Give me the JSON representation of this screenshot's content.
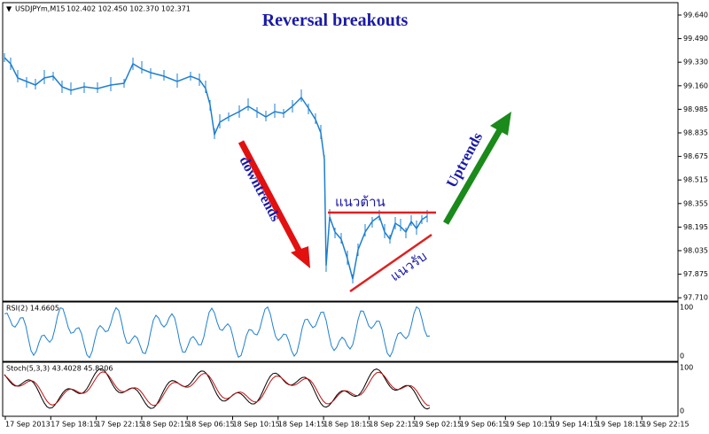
{
  "header": {
    "symbol": "USDJPYm,M15",
    "quote": "102.402 102.450 102.370 102.371"
  },
  "title": "Reversal breakouts",
  "annotations": {
    "downtrend": "downtrends",
    "uptrend": "Uptrends",
    "resistance": "แนวต้าน",
    "support": "แนวรับ"
  },
  "price_axis": [
    "99.640",
    "99.490",
    "99.330",
    "99.160",
    "98.985",
    "98.835",
    "98.675",
    "98.515",
    "98.355",
    "98.195",
    "98.035",
    "97.875",
    "97.710"
  ],
  "rsi": {
    "label": "RSI(2) 14.6605",
    "axis": [
      "100",
      "0"
    ]
  },
  "stoch": {
    "label": "Stoch(5,3,3) 43.4028 45.8206",
    "axis": [
      "100",
      "0"
    ]
  },
  "time_axis": [
    "17 Sep 2013",
    "17 Sep 18:15",
    "17 Sep 22:15",
    "18 Sep 02:15",
    "18 Sep 06:15",
    "18 Sep 10:15",
    "18 Sep 14:15",
    "18 Sep 18:15",
    "18 Sep 22:15",
    "19 Sep 02:15",
    "19 Sep 06:15",
    "19 Sep 10:15",
    "19 Sep 14:15",
    "19 Sep 18:15",
    "19 Sep 22:15"
  ]
}
